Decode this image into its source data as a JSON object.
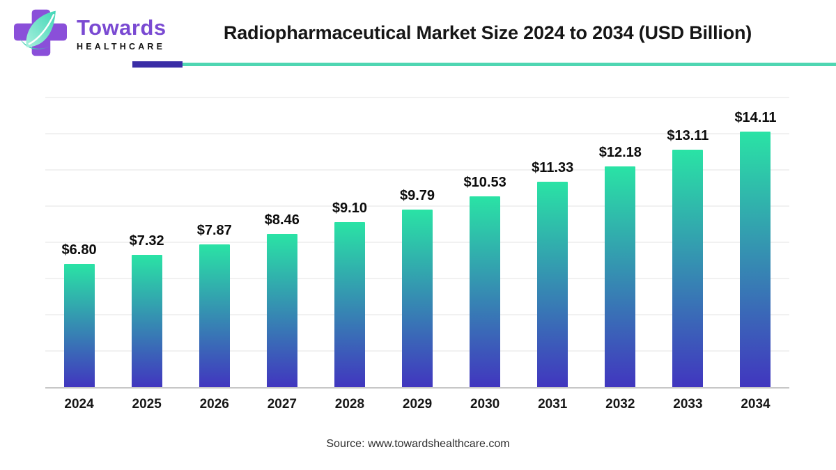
{
  "header": {
    "logo": {
      "wordmark": "Towards",
      "subtext": "HEALTHCARE",
      "cross_color": "#8a4fd9",
      "leaf_color_light": "#a9f0de",
      "leaf_color_dark": "#41d6b6",
      "wordmark_color": "#7a4ad2",
      "subtext_color": "#151515"
    },
    "title": "Radiopharmaceutical Market Size 2024 to 2034 (USD Billion)",
    "divider": {
      "accent_color": "#3a2da6",
      "line_color": "#4fd6b2"
    }
  },
  "chart_data": {
    "type": "bar",
    "title": "Radiopharmaceutical Market Size 2024 to 2034 (USD Billion)",
    "unit": "USD Billion",
    "categories": [
      "2024",
      "2025",
      "2026",
      "2027",
      "2028",
      "2029",
      "2030",
      "2031",
      "2032",
      "2033",
      "2034"
    ],
    "values": [
      6.8,
      7.32,
      7.87,
      8.46,
      9.1,
      9.79,
      10.53,
      11.33,
      12.18,
      13.11,
      14.11
    ],
    "labels": [
      "$6.80",
      "$7.32",
      "$7.87",
      "$8.46",
      "$9.10",
      "$9.79",
      "$10.53",
      "$11.33",
      "$12.18",
      "$13.11",
      "$14.11"
    ],
    "value_prefix": "$",
    "xlabel": "",
    "ylabel": "",
    "ylim": [
      0,
      16
    ],
    "gridline_step": 2,
    "grid": true,
    "legend": false,
    "y_axis_labels_shown": false,
    "bar_gradient_top": "#2ae3a5",
    "bar_gradient_bottom": "#4136bf",
    "value_label_color": "#0c0c0c",
    "category_label_color": "#161616",
    "gridline_color": "#f1f1f1",
    "axis_line_color": "#c7c7c7"
  },
  "footer": {
    "source": "Source: www.towardshealthcare.com"
  }
}
